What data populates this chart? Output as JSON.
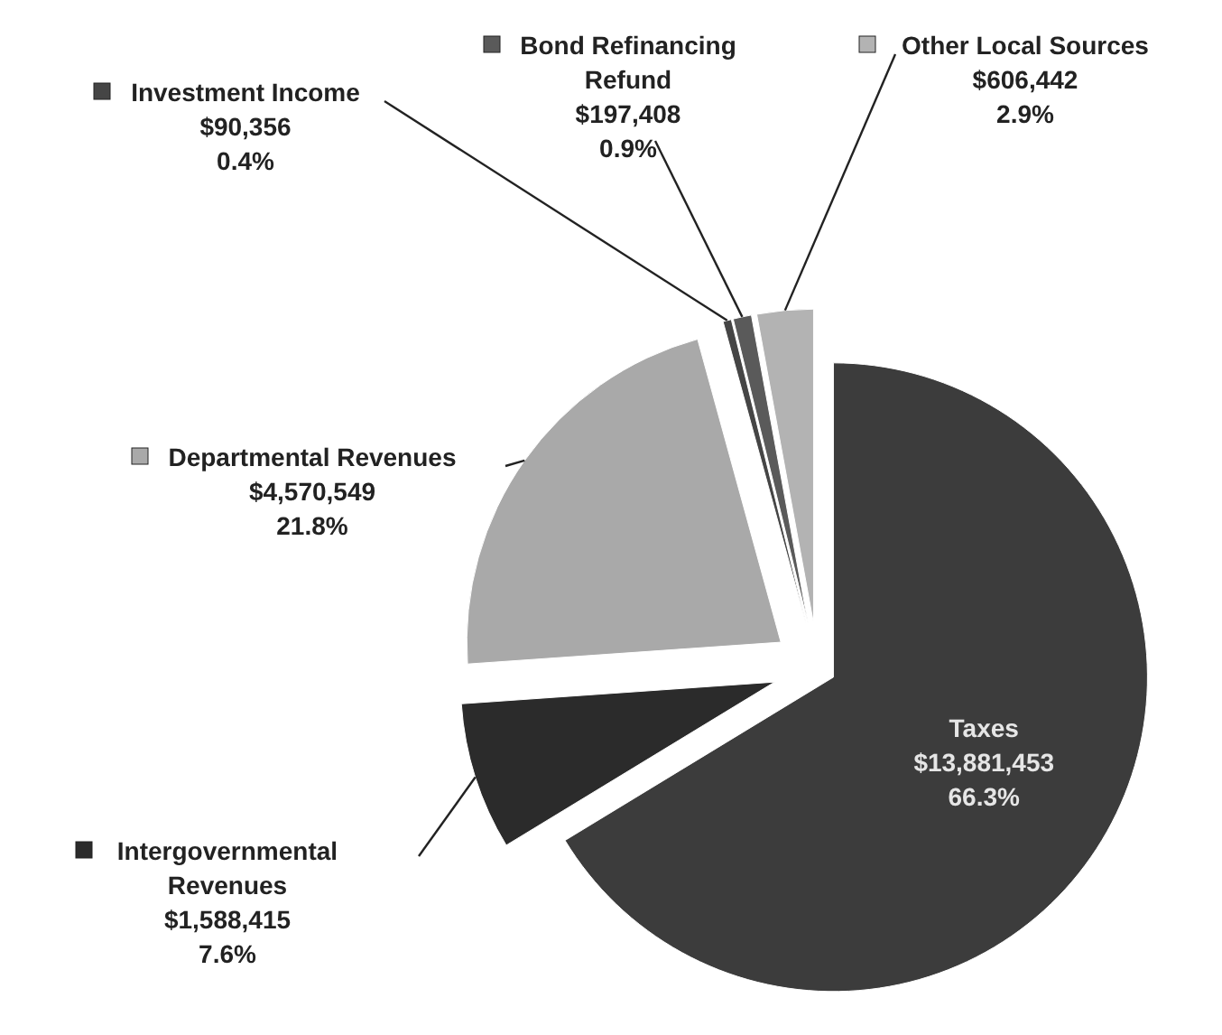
{
  "chart_data": {
    "type": "pie",
    "legend": "top",
    "categories": [
      "Taxes",
      "Intergovernmental Revenues",
      "Departmental Revenues",
      "Investment Income",
      "Bond Refinancing Refund",
      "Other Local Sources"
    ],
    "values": [
      13881453,
      1588415,
      4570549,
      90356,
      197408,
      606442
    ],
    "colors": [
      "#3c3c3c",
      "#2b2b2b",
      "#a9a9a9",
      "#454545",
      "#5a5a5a",
      "#b3b3b3"
    ],
    "value_labels": [
      "$13,881,453\n66.3%",
      "$1,588,415\n7.6%",
      "$4,570,549\n21.8%",
      "$90,356\n0.4%",
      "$197,408\n0.9%",
      "$606,442\n2.9%"
    ]
  }
}
